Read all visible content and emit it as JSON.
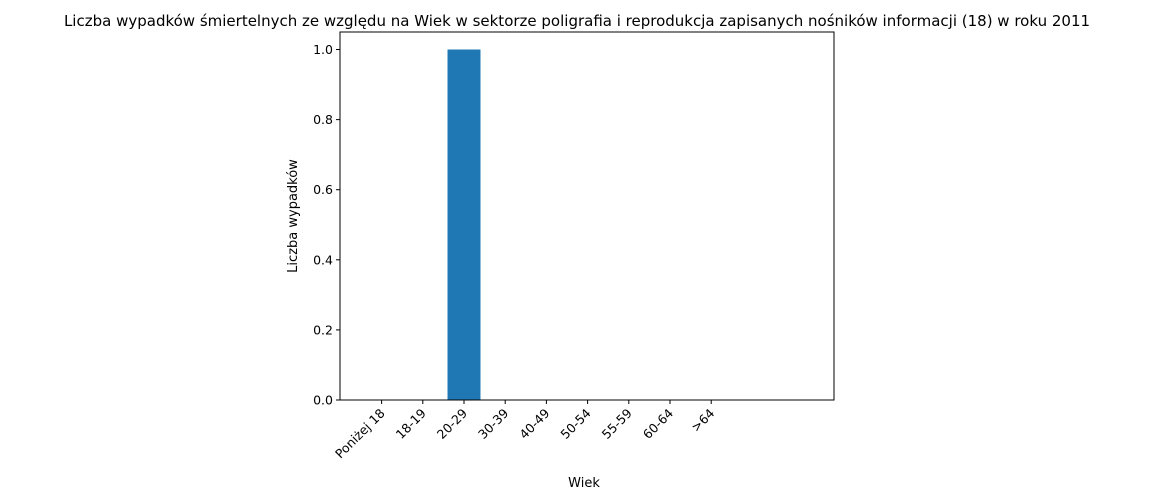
{
  "chart_data": {
    "type": "bar",
    "title": "Liczba wypadków śmiertelnych ze względu na Wiek w sektorze poligrafia i reprodukcja zapisanych nośników informacji  (18) w roku 2011",
    "xlabel": "Wiek",
    "ylabel": "Liczba wypadków",
    "categories": [
      "Poniżej 18",
      "18-19",
      "20-29",
      "30-39",
      "40-49",
      "50-54",
      "55-59",
      "60-64",
      ">64"
    ],
    "values": [
      0,
      0,
      1,
      0,
      0,
      0,
      0,
      0,
      0
    ],
    "ylim": [
      0,
      1.05
    ],
    "yticks": [
      "0.0",
      "0.2",
      "0.4",
      "0.6",
      "0.8",
      "1.0"
    ],
    "bar_color": "#1f77b4",
    "grid": false,
    "legend": "none"
  }
}
